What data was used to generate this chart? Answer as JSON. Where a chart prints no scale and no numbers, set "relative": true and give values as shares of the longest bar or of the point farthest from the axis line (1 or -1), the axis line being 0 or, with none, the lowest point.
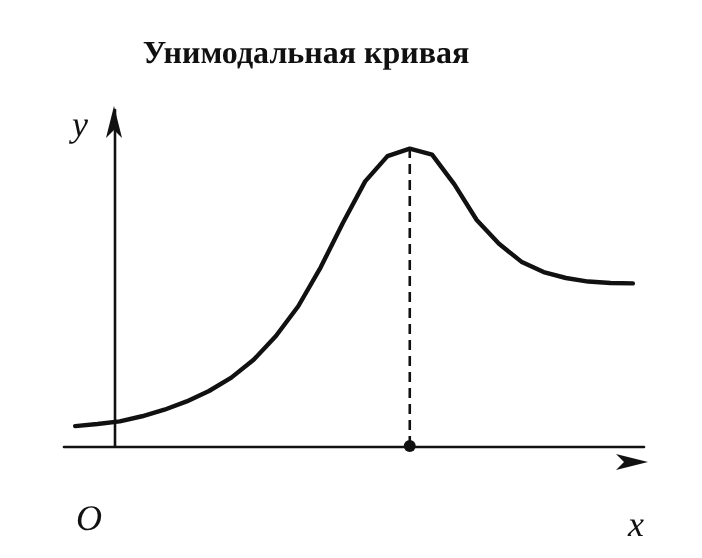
{
  "chart_data": {
    "type": "line",
    "title": "Унимодальная кривая",
    "xlabel": "x",
    "ylabel": "y",
    "relative": true,
    "grid": false,
    "marker": "none",
    "line_style": "solid",
    "categories": [
      null,
      null,
      null,
      null,
      null,
      null,
      null,
      null,
      null,
      null,
      null,
      null,
      null,
      null,
      null,
      null,
      null,
      null,
      null,
      null,
      null,
      null,
      null,
      null,
      null,
      null
    ],
    "series": [
      {
        "color": "#111111",
        "values": [
          0.067,
          0.074,
          0.083,
          0.1,
          0.122,
          0.15,
          0.185,
          0.23,
          0.29,
          0.37,
          0.47,
          0.6,
          0.75,
          0.89,
          0.975,
          1,
          0.98,
          0.88,
          0.76,
          0.68,
          0.62,
          0.585,
          0.565,
          0.553,
          0.548,
          0.547
        ]
      }
    ],
    "annotations": [
      "O"
    ]
  }
}
